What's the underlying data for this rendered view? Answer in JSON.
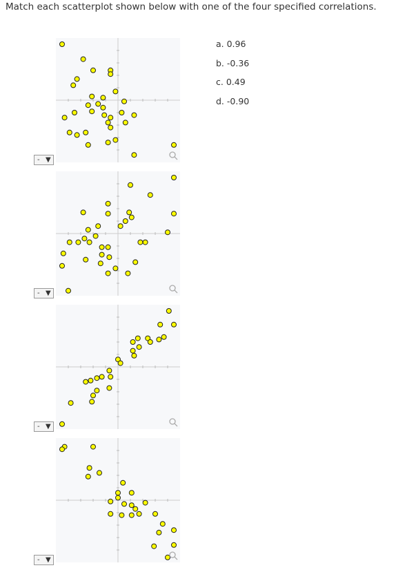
{
  "question": "Match each scatterplot shown below with one of the four specified correlations.",
  "options": [
    "a. 0.96",
    "b. -0.36",
    "c. 0.49",
    "d. -0.90"
  ],
  "plots": [
    {
      "type": "scatter",
      "select": "-",
      "xlim": [
        -5,
        5
      ],
      "ylim": [
        -5,
        5
      ],
      "xticks": [
        -4,
        -3,
        -2,
        -1,
        1,
        2,
        3,
        4
      ],
      "yticks": [
        -4,
        -3,
        -2,
        -1,
        1,
        2,
        3,
        4
      ],
      "x": [
        -4.5,
        -2.8,
        -2.0,
        -0.6,
        -0.6,
        -3.3,
        -3.6,
        -0.2,
        -2.1,
        -1.2,
        0.5,
        -2.4,
        -1.6,
        -1.2,
        -2.1,
        -1.1,
        -0.6,
        0.3,
        1.3,
        -4.3,
        -3.5,
        -0.8,
        0.6,
        -0.6,
        -3.9,
        -2.6,
        -3.3,
        -0.8,
        -0.2,
        -2.4,
        1.3,
        4.5
      ],
      "y": [
        4.5,
        3.3,
        2.4,
        2.4,
        2.1,
        1.7,
        1.2,
        0.7,
        0.3,
        0.2,
        -0.1,
        -0.4,
        -0.3,
        -0.6,
        -0.9,
        -1.2,
        -1.4,
        -1.0,
        -1.2,
        -1.4,
        -1.0,
        -1.8,
        -1.8,
        -2.2,
        -2.6,
        -2.6,
        -2.8,
        -3.4,
        -3.2,
        -3.6,
        -4.4,
        -3.6
      ]
    },
    {
      "type": "scatter",
      "select": "-",
      "xlim": [
        -5,
        5
      ],
      "ylim": [
        -5,
        5
      ],
      "xticks": [
        -4,
        -3,
        -2,
        -1,
        1,
        2,
        3,
        4
      ],
      "yticks": [
        -4,
        -3,
        -2,
        -1,
        1,
        2,
        3,
        4
      ],
      "x": [
        1.0,
        4.5,
        2.6,
        -0.8,
        -2.8,
        -0.8,
        0.9,
        1.1,
        0.6,
        4.5,
        -1.6,
        -2.4,
        0.2,
        -1.8,
        4.0,
        -3.9,
        -3.2,
        -2.7,
        -2.3,
        1.8,
        2.2,
        -1.3,
        -0.8,
        -1.3,
        -0.7,
        -2.6,
        -4.4,
        -4.5,
        -1.4,
        -0.2,
        -0.8,
        1.4,
        0.8,
        -4.0
      ],
      "y": [
        3.9,
        4.5,
        3.1,
        2.4,
        1.7,
        1.6,
        1.7,
        1.3,
        1.0,
        1.6,
        0.6,
        0.3,
        0.6,
        -0.2,
        0.1,
        -0.7,
        -0.7,
        -0.4,
        -0.7,
        -0.7,
        -0.7,
        -1.1,
        -1.1,
        -1.7,
        -1.9,
        -2.1,
        -1.6,
        -2.6,
        -2.4,
        -2.8,
        -3.2,
        -2.3,
        -3.2,
        -4.6
      ]
    },
    {
      "type": "scatter",
      "select": "-",
      "xlim": [
        -5,
        5
      ],
      "ylim": [
        -5,
        5
      ],
      "xticks": [
        -4,
        -3,
        -2,
        -1,
        1,
        2,
        3,
        4
      ],
      "yticks": [
        -4,
        -3,
        -2,
        -1,
        1,
        2,
        3,
        4
      ],
      "x": [
        4.1,
        3.4,
        4.5,
        1.2,
        1.6,
        2.4,
        3.7,
        3.3,
        2.6,
        1.7,
        1.2,
        1.3,
        0,
        0.2,
        -0.7,
        -0.6,
        -1.3,
        -1.7,
        -2.2,
        -2.6,
        -1.7,
        -0.7,
        -2.0,
        -2.1,
        -3.8,
        -4.5
      ],
      "y": [
        4.5,
        3.4,
        3.4,
        2.0,
        2.3,
        2.3,
        2.4,
        2.2,
        2.0,
        1.6,
        1.3,
        0.9,
        0.6,
        0.3,
        -0.3,
        -0.8,
        -0.8,
        -0.9,
        -1.1,
        -1.2,
        -1.9,
        -1.7,
        -2.3,
        -2.8,
        -2.9,
        -4.6
      ]
    },
    {
      "type": "scatter",
      "select": "-",
      "xlim": [
        -5,
        5
      ],
      "ylim": [
        -5,
        5
      ],
      "xticks": [
        -4,
        -3,
        -2,
        -1,
        1,
        2,
        3,
        4
      ],
      "yticks": [
        -4,
        -3,
        -2,
        -1,
        1,
        2,
        3,
        4
      ],
      "x": [
        -4.3,
        -4.5,
        -2.0,
        -2.3,
        -2.4,
        -1.5,
        0.4,
        0,
        1.1,
        -0.6,
        0,
        0.5,
        1.1,
        1.4,
        2.2,
        1.7,
        0.3,
        -0.6,
        1.1,
        3.0,
        3.6,
        3.3,
        4.5,
        2.9,
        4.0,
        4.5
      ],
      "y": [
        4.3,
        4.1,
        4.3,
        2.6,
        1.9,
        2.2,
        1.4,
        0.6,
        0.6,
        -0.1,
        0.2,
        -0.3,
        -0.4,
        -0.7,
        -0.2,
        -1.1,
        -1.2,
        -1.1,
        -1.2,
        -1.1,
        -1.9,
        -2.6,
        -2.4,
        -3.7,
        -4.6,
        -3.6
      ]
    }
  ]
}
